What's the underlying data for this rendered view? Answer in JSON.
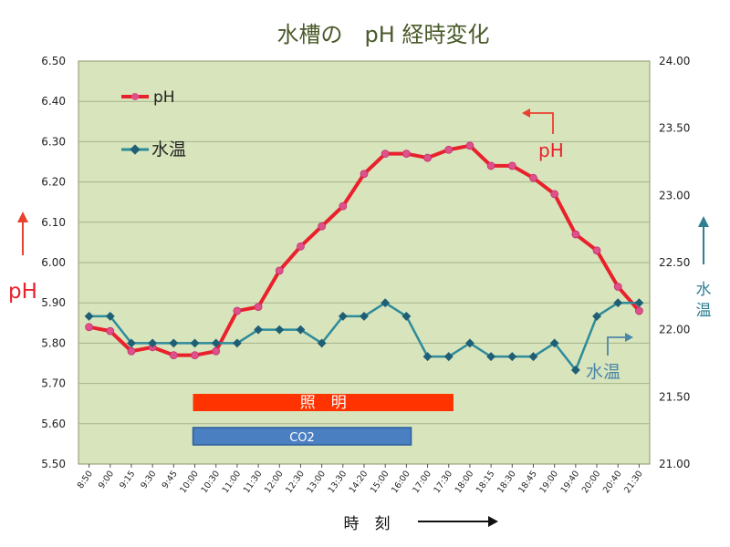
{
  "chart_data": {
    "type": "line",
    "title": "水槽の　pH 経時変化",
    "xlabel": "時　刻",
    "y_left": {
      "ylim": [
        5.5,
        6.5
      ],
      "ticks": [
        "5.50",
        "5.60",
        "5.70",
        "5.80",
        "5.90",
        "6.00",
        "6.10",
        "6.20",
        "6.30",
        "6.40",
        "6.50"
      ],
      "label": "pH",
      "arrow": "↑"
    },
    "y_right": {
      "ylim": [
        21.0,
        24.0
      ],
      "ticks": [
        "21.00",
        "21.50",
        "22.00",
        "22.50",
        "23.00",
        "23.50",
        "24.00"
      ],
      "label_lines": [
        "水",
        "温"
      ],
      "arrow": "↑"
    },
    "categories": [
      "8:50",
      "9:00",
      "9:15",
      "9:30",
      "9:45",
      "10:00",
      "10:30",
      "11:00",
      "11:30",
      "12:00",
      "12:30",
      "13:00",
      "13:30",
      "14:20",
      "15:00",
      "16:00",
      "17:00",
      "17:30",
      "18:00",
      "18:15",
      "18:30",
      "18:45",
      "19:00",
      "19:40",
      "20:00",
      "20:40",
      "21:30"
    ],
    "series": [
      {
        "name": "pH",
        "axis": "left",
        "color": "#e8212c",
        "marker_color": "#e0508a",
        "values": [
          5.84,
          5.83,
          5.78,
          5.79,
          5.77,
          5.77,
          5.78,
          5.88,
          5.89,
          5.98,
          6.04,
          6.09,
          6.14,
          6.22,
          6.27,
          6.27,
          6.26,
          6.28,
          6.29,
          6.24,
          6.24,
          6.21,
          6.17,
          6.07,
          6.03,
          5.94,
          5.88
        ]
      },
      {
        "name": "水温",
        "axis": "right",
        "color": "#2e8b9a",
        "marker_color": "#1f5f75",
        "values": [
          22.1,
          22.1,
          21.9,
          21.9,
          21.9,
          21.9,
          21.9,
          21.9,
          22.0,
          22.0,
          22.0,
          21.9,
          22.1,
          22.1,
          22.2,
          22.1,
          21.8,
          21.8,
          21.9,
          21.8,
          21.8,
          21.8,
          21.9,
          21.7,
          22.1,
          22.2,
          22.2
        ]
      }
    ],
    "legend": {
      "placement": "top-left",
      "items": [
        "pH",
        "水温"
      ]
    },
    "annotations": [
      {
        "text": "pH",
        "color": "#e8212c",
        "arrow": "left"
      },
      {
        "text": "水温",
        "color": "#4a86a8",
        "arrow": "right"
      }
    ],
    "bars": [
      {
        "label": "照　明",
        "color": "#ff3300",
        "from": "10:00",
        "to": "18:00"
      },
      {
        "label": "CO2",
        "color": "#4a7fc1",
        "from": "10:00",
        "to": "17:00"
      }
    ],
    "grid": true,
    "plot_background": "#d8e4bc"
  }
}
